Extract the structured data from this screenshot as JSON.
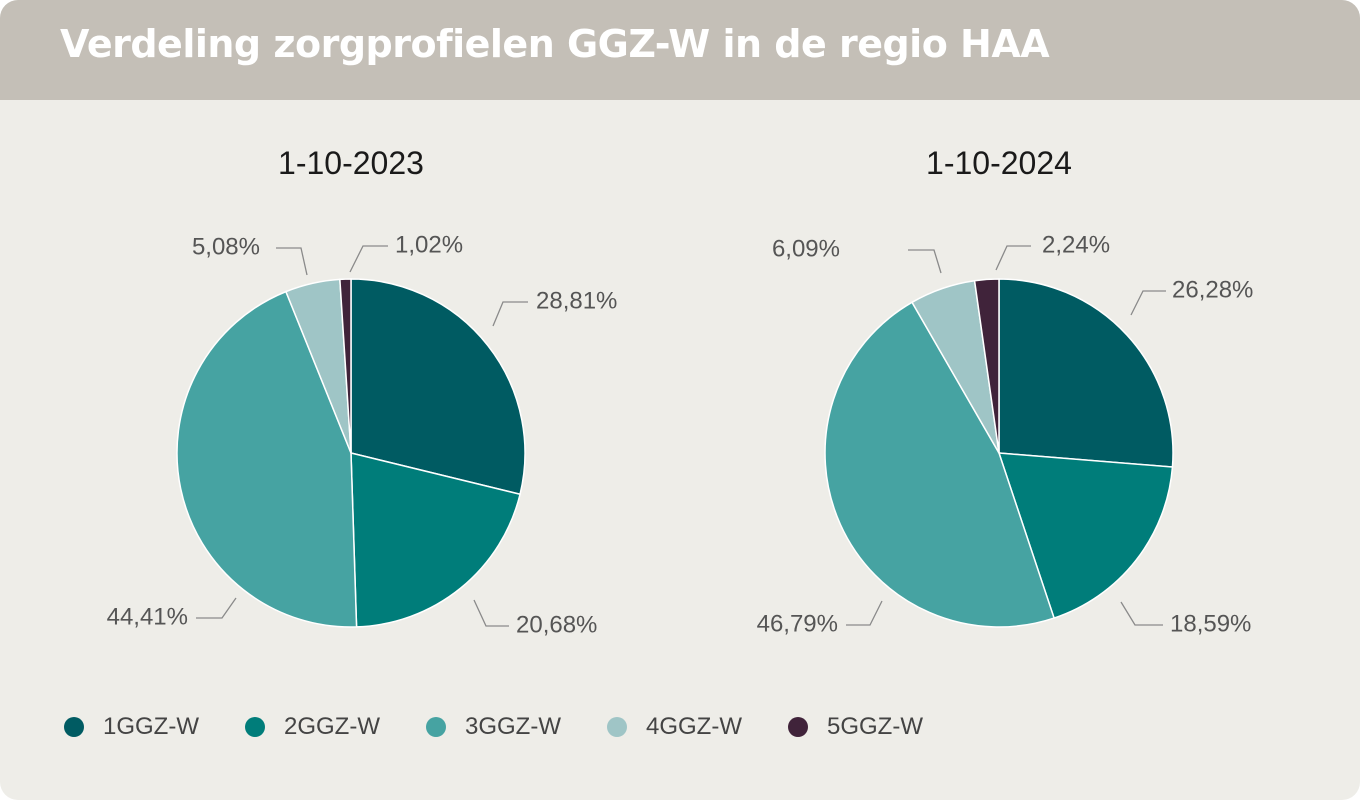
{
  "header": {
    "title": "Verdeling zorgprofielen GGZ-W in de regio HAA"
  },
  "colors": {
    "header_background": "#c4bfb7",
    "panel_background": "#eeede8",
    "1GGZ-W": "#005b62",
    "2GGZ-W": "#007d7a",
    "3GGZ-W": "#46a3a2",
    "4GGZ-W": "#9fc5c6",
    "5GGZ-W": "#40233a"
  },
  "chart_data": [
    {
      "type": "pie",
      "title": "1-10-2023",
      "categories": [
        "1GGZ-W",
        "2GGZ-W",
        "3GGZ-W",
        "4GGZ-W",
        "5GGZ-W"
      ],
      "values": [
        28.81,
        20.68,
        44.41,
        5.08,
        1.02
      ],
      "labels": [
        "28,81%",
        "20,68%",
        "44,41%",
        "5,08%",
        "1,02%"
      ]
    },
    {
      "type": "pie",
      "title": "1-10-2024",
      "categories": [
        "1GGZ-W",
        "2GGZ-W",
        "3GGZ-W",
        "4GGZ-W",
        "5GGZ-W"
      ],
      "values": [
        26.28,
        18.59,
        46.79,
        6.09,
        2.24
      ],
      "labels": [
        "26,28%",
        "18,59%",
        "46,79%",
        "6,09%",
        "2,24%"
      ]
    }
  ],
  "legend": {
    "items": [
      {
        "label": "1GGZ-W",
        "color": "#005b62"
      },
      {
        "label": "2GGZ-W",
        "color": "#007d7a"
      },
      {
        "label": "3GGZ-W",
        "color": "#46a3a2"
      },
      {
        "label": "4GGZ-W",
        "color": "#9fc5c6"
      },
      {
        "label": "5GGZ-W",
        "color": "#40233a"
      }
    ]
  }
}
